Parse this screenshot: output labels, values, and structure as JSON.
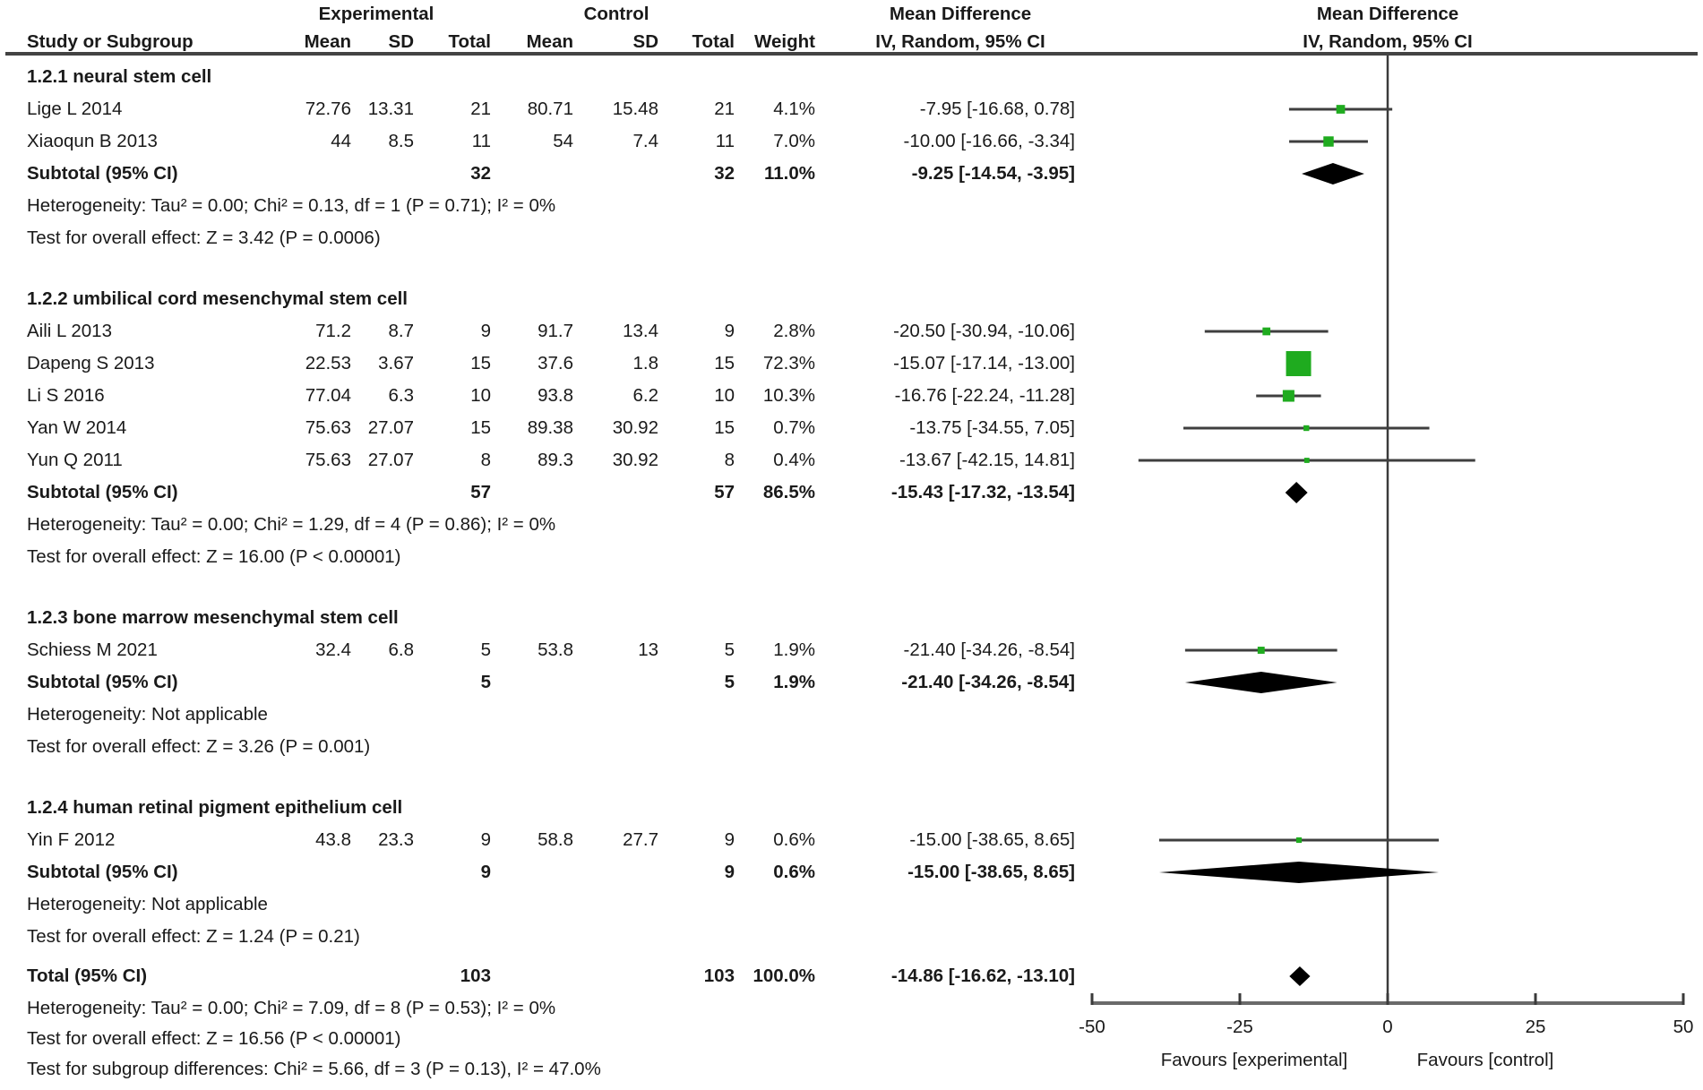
{
  "header": {
    "experimental": "Experimental",
    "control": "Control",
    "mean_difference_left": "Mean Difference",
    "mean_difference_right": "Mean Difference",
    "columns": {
      "study": "Study or Subgroup",
      "mean": "Mean",
      "sd": "SD",
      "total": "Total",
      "weight": "Weight",
      "ci": "IV, Random, 95% CI"
    },
    "ci_method_right": "IV, Random, 95% CI"
  },
  "sections": [
    {
      "label": "1.2.1 neural stem cell",
      "studies": [
        {
          "name": "Lige L 2014",
          "exp_mean": "72.76",
          "exp_sd": "13.31",
          "exp_total": "21",
          "ctrl_mean": "80.71",
          "ctrl_sd": "15.48",
          "ctrl_total": "21",
          "weight": "4.1%",
          "ci_text": "-7.95 [-16.68, 0.78]",
          "est": -7.95,
          "lo": -16.68,
          "hi": 0.78,
          "weight_pct": 4.1
        },
        {
          "name": "Xiaoqun B 2013",
          "exp_mean": "44",
          "exp_sd": "8.5",
          "exp_total": "11",
          "ctrl_mean": "54",
          "ctrl_sd": "7.4",
          "ctrl_total": "11",
          "weight": "7.0%",
          "ci_text": "-10.00 [-16.66, -3.34]",
          "est": -10.0,
          "lo": -16.66,
          "hi": -3.34,
          "weight_pct": 7.0
        }
      ],
      "subtotal": {
        "label": "Subtotal (95% CI)",
        "exp_total": "32",
        "ctrl_total": "32",
        "weight": "11.0%",
        "ci_text": "-9.25 [-14.54, -3.95]",
        "est": -9.25,
        "lo": -14.54,
        "hi": -3.95
      },
      "heterogeneity": "Heterogeneity: Tau² = 0.00; Chi² = 0.13, df = 1 (P = 0.71); I² = 0%",
      "overall_effect": "Test for overall effect: Z = 3.42 (P = 0.0006)"
    },
    {
      "label": "1.2.2 umbilical cord mesenchymal stem cell",
      "studies": [
        {
          "name": "Aili L 2013",
          "exp_mean": "71.2",
          "exp_sd": "8.7",
          "exp_total": "9",
          "ctrl_mean": "91.7",
          "ctrl_sd": "13.4",
          "ctrl_total": "9",
          "weight": "2.8%",
          "ci_text": "-20.50 [-30.94, -10.06]",
          "est": -20.5,
          "lo": -30.94,
          "hi": -10.06,
          "weight_pct": 2.8
        },
        {
          "name": "Dapeng S 2013",
          "exp_mean": "22.53",
          "exp_sd": "3.67",
          "exp_total": "15",
          "ctrl_mean": "37.6",
          "ctrl_sd": "1.8",
          "ctrl_total": "15",
          "weight": "72.3%",
          "ci_text": "-15.07 [-17.14, -13.00]",
          "est": -15.07,
          "lo": -17.14,
          "hi": -13.0,
          "weight_pct": 72.3
        },
        {
          "name": "Li S 2016",
          "exp_mean": "77.04",
          "exp_sd": "6.3",
          "exp_total": "10",
          "ctrl_mean": "93.8",
          "ctrl_sd": "6.2",
          "ctrl_total": "10",
          "weight": "10.3%",
          "ci_text": "-16.76 [-22.24, -11.28]",
          "est": -16.76,
          "lo": -22.24,
          "hi": -11.28,
          "weight_pct": 10.3
        },
        {
          "name": "Yan W 2014",
          "exp_mean": "75.63",
          "exp_sd": "27.07",
          "exp_total": "15",
          "ctrl_mean": "89.38",
          "ctrl_sd": "30.92",
          "ctrl_total": "15",
          "weight": "0.7%",
          "ci_text": "-13.75 [-34.55, 7.05]",
          "est": -13.75,
          "lo": -34.55,
          "hi": 7.05,
          "weight_pct": 0.7
        },
        {
          "name": "Yun Q 2011",
          "exp_mean": "75.63",
          "exp_sd": "27.07",
          "exp_total": "8",
          "ctrl_mean": "89.3",
          "ctrl_sd": "30.92",
          "ctrl_total": "8",
          "weight": "0.4%",
          "ci_text": "-13.67 [-42.15, 14.81]",
          "est": -13.67,
          "lo": -42.15,
          "hi": 14.81,
          "weight_pct": 0.4
        }
      ],
      "subtotal": {
        "label": "Subtotal (95% CI)",
        "exp_total": "57",
        "ctrl_total": "57",
        "weight": "86.5%",
        "ci_text": "-15.43 [-17.32, -13.54]",
        "est": -15.43,
        "lo": -17.32,
        "hi": -13.54
      },
      "heterogeneity": "Heterogeneity: Tau² = 0.00; Chi² = 1.29, df = 4 (P = 0.86); I² = 0%",
      "overall_effect": "Test for overall effect: Z = 16.00 (P < 0.00001)"
    },
    {
      "label": "1.2.3 bone marrow mesenchymal stem cell",
      "studies": [
        {
          "name": "Schiess M 2021",
          "exp_mean": "32.4",
          "exp_sd": "6.8",
          "exp_total": "5",
          "ctrl_mean": "53.8",
          "ctrl_sd": "13",
          "ctrl_total": "5",
          "weight": "1.9%",
          "ci_text": "-21.40 [-34.26, -8.54]",
          "est": -21.4,
          "lo": -34.26,
          "hi": -8.54,
          "weight_pct": 1.9
        }
      ],
      "subtotal": {
        "label": "Subtotal (95% CI)",
        "exp_total": "5",
        "ctrl_total": "5",
        "weight": "1.9%",
        "ci_text": "-21.40 [-34.26, -8.54]",
        "est": -21.4,
        "lo": -34.26,
        "hi": -8.54
      },
      "heterogeneity": "Heterogeneity: Not applicable",
      "overall_effect": "Test for overall effect: Z = 3.26 (P = 0.001)"
    },
    {
      "label": "1.2.4 human retinal pigment epithelium cell",
      "studies": [
        {
          "name": "Yin F 2012",
          "exp_mean": "43.8",
          "exp_sd": "23.3",
          "exp_total": "9",
          "ctrl_mean": "58.8",
          "ctrl_sd": "27.7",
          "ctrl_total": "9",
          "weight": "0.6%",
          "ci_text": "-15.00 [-38.65, 8.65]",
          "est": -15.0,
          "lo": -38.65,
          "hi": 8.65,
          "weight_pct": 0.6
        }
      ],
      "subtotal": {
        "label": "Subtotal (95% CI)",
        "exp_total": "9",
        "ctrl_total": "9",
        "weight": "0.6%",
        "ci_text": "-15.00 [-38.65, 8.65]",
        "est": -15.0,
        "lo": -38.65,
        "hi": 8.65
      },
      "heterogeneity": "Heterogeneity: Not applicable",
      "overall_effect": "Test for overall effect: Z = 1.24 (P = 0.21)"
    }
  ],
  "total": {
    "label": "Total (95% CI)",
    "exp_total": "103",
    "ctrl_total": "103",
    "weight": "100.0%",
    "ci_text": "-14.86 [-16.62, -13.10]",
    "est": -14.86,
    "lo": -16.62,
    "hi": -13.1,
    "heterogeneity": "Heterogeneity: Tau² = 0.00; Chi² = 7.09, df = 8 (P = 0.53); I² = 0%",
    "overall_effect": "Test for overall effect: Z = 16.56 (P < 0.00001)",
    "subgroup_differences": "Test for subgroup differences: Chi² = 5.66, df = 3 (P = 0.13), I² = 47.0%"
  },
  "axis": {
    "ticks": [
      -50,
      -25,
      0,
      25,
      50
    ],
    "xlim": [
      -50,
      50
    ],
    "favours_left": "Favours [experimental]",
    "favours_right": "Favours [control]"
  },
  "colors": {
    "marker_green": "#1FAB1F",
    "diamond_black": "#000000",
    "ci_line": "#3f3f3f",
    "axis_gray": "#6a6a6a",
    "tick_dark": "#3a3a3a",
    "text": "#1a1a1a",
    "rule": "#434343"
  },
  "chart_data": {
    "type": "scatter",
    "subtype": "forest_plot_mean_difference",
    "title": "Mean Difference  IV, Random, 95% CI",
    "xlabel": "Mean Difference",
    "xlim": [
      -50,
      50
    ],
    "xticks": [
      -50,
      -25,
      0,
      25,
      50
    ],
    "favours": [
      "Favours [experimental]",
      "Favours [control]"
    ],
    "studies": [
      {
        "subgroup": "1.2.1 neural stem cell",
        "name": "Lige L 2014",
        "estimate": -7.95,
        "ci": [
          -16.68,
          0.78
        ],
        "weight_pct": 4.1
      },
      {
        "subgroup": "1.2.1 neural stem cell",
        "name": "Xiaoqun B 2013",
        "estimate": -10.0,
        "ci": [
          -16.66,
          -3.34
        ],
        "weight_pct": 7.0
      },
      {
        "subgroup": "1.2.2 umbilical cord mesenchymal stem cell",
        "name": "Aili L 2013",
        "estimate": -20.5,
        "ci": [
          -30.94,
          -10.06
        ],
        "weight_pct": 2.8
      },
      {
        "subgroup": "1.2.2 umbilical cord mesenchymal stem cell",
        "name": "Dapeng S 2013",
        "estimate": -15.07,
        "ci": [
          -17.14,
          -13.0
        ],
        "weight_pct": 72.3
      },
      {
        "subgroup": "1.2.2 umbilical cord mesenchymal stem cell",
        "name": "Li S 2016",
        "estimate": -16.76,
        "ci": [
          -22.24,
          -11.28
        ],
        "weight_pct": 10.3
      },
      {
        "subgroup": "1.2.2 umbilical cord mesenchymal stem cell",
        "name": "Yan W 2014",
        "estimate": -13.75,
        "ci": [
          -34.55,
          7.05
        ],
        "weight_pct": 0.7
      },
      {
        "subgroup": "1.2.2 umbilical cord mesenchymal stem cell",
        "name": "Yun Q 2011",
        "estimate": -13.67,
        "ci": [
          -42.15,
          14.81
        ],
        "weight_pct": 0.4
      },
      {
        "subgroup": "1.2.3 bone marrow mesenchymal stem cell",
        "name": "Schiess M 2021",
        "estimate": -21.4,
        "ci": [
          -34.26,
          -8.54
        ],
        "weight_pct": 1.9
      },
      {
        "subgroup": "1.2.4 human retinal pigment epithelium cell",
        "name": "Yin F 2012",
        "estimate": -15.0,
        "ci": [
          -38.65,
          8.65
        ],
        "weight_pct": 0.6
      }
    ],
    "subtotals": [
      {
        "subgroup": "1.2.1 neural stem cell",
        "estimate": -9.25,
        "ci": [
          -14.54,
          -3.95
        ],
        "weight_pct": 11.0
      },
      {
        "subgroup": "1.2.2 umbilical cord mesenchymal stem cell",
        "estimate": -15.43,
        "ci": [
          -17.32,
          -13.54
        ],
        "weight_pct": 86.5
      },
      {
        "subgroup": "1.2.3 bone marrow mesenchymal stem cell",
        "estimate": -21.4,
        "ci": [
          -34.26,
          -8.54
        ],
        "weight_pct": 1.9
      },
      {
        "subgroup": "1.2.4 human retinal pigment epithelium cell",
        "estimate": -15.0,
        "ci": [
          -38.65,
          8.65
        ],
        "weight_pct": 0.6
      }
    ],
    "total": {
      "estimate": -14.86,
      "ci": [
        -16.62,
        -13.1
      ],
      "weight_pct": 100.0
    }
  }
}
